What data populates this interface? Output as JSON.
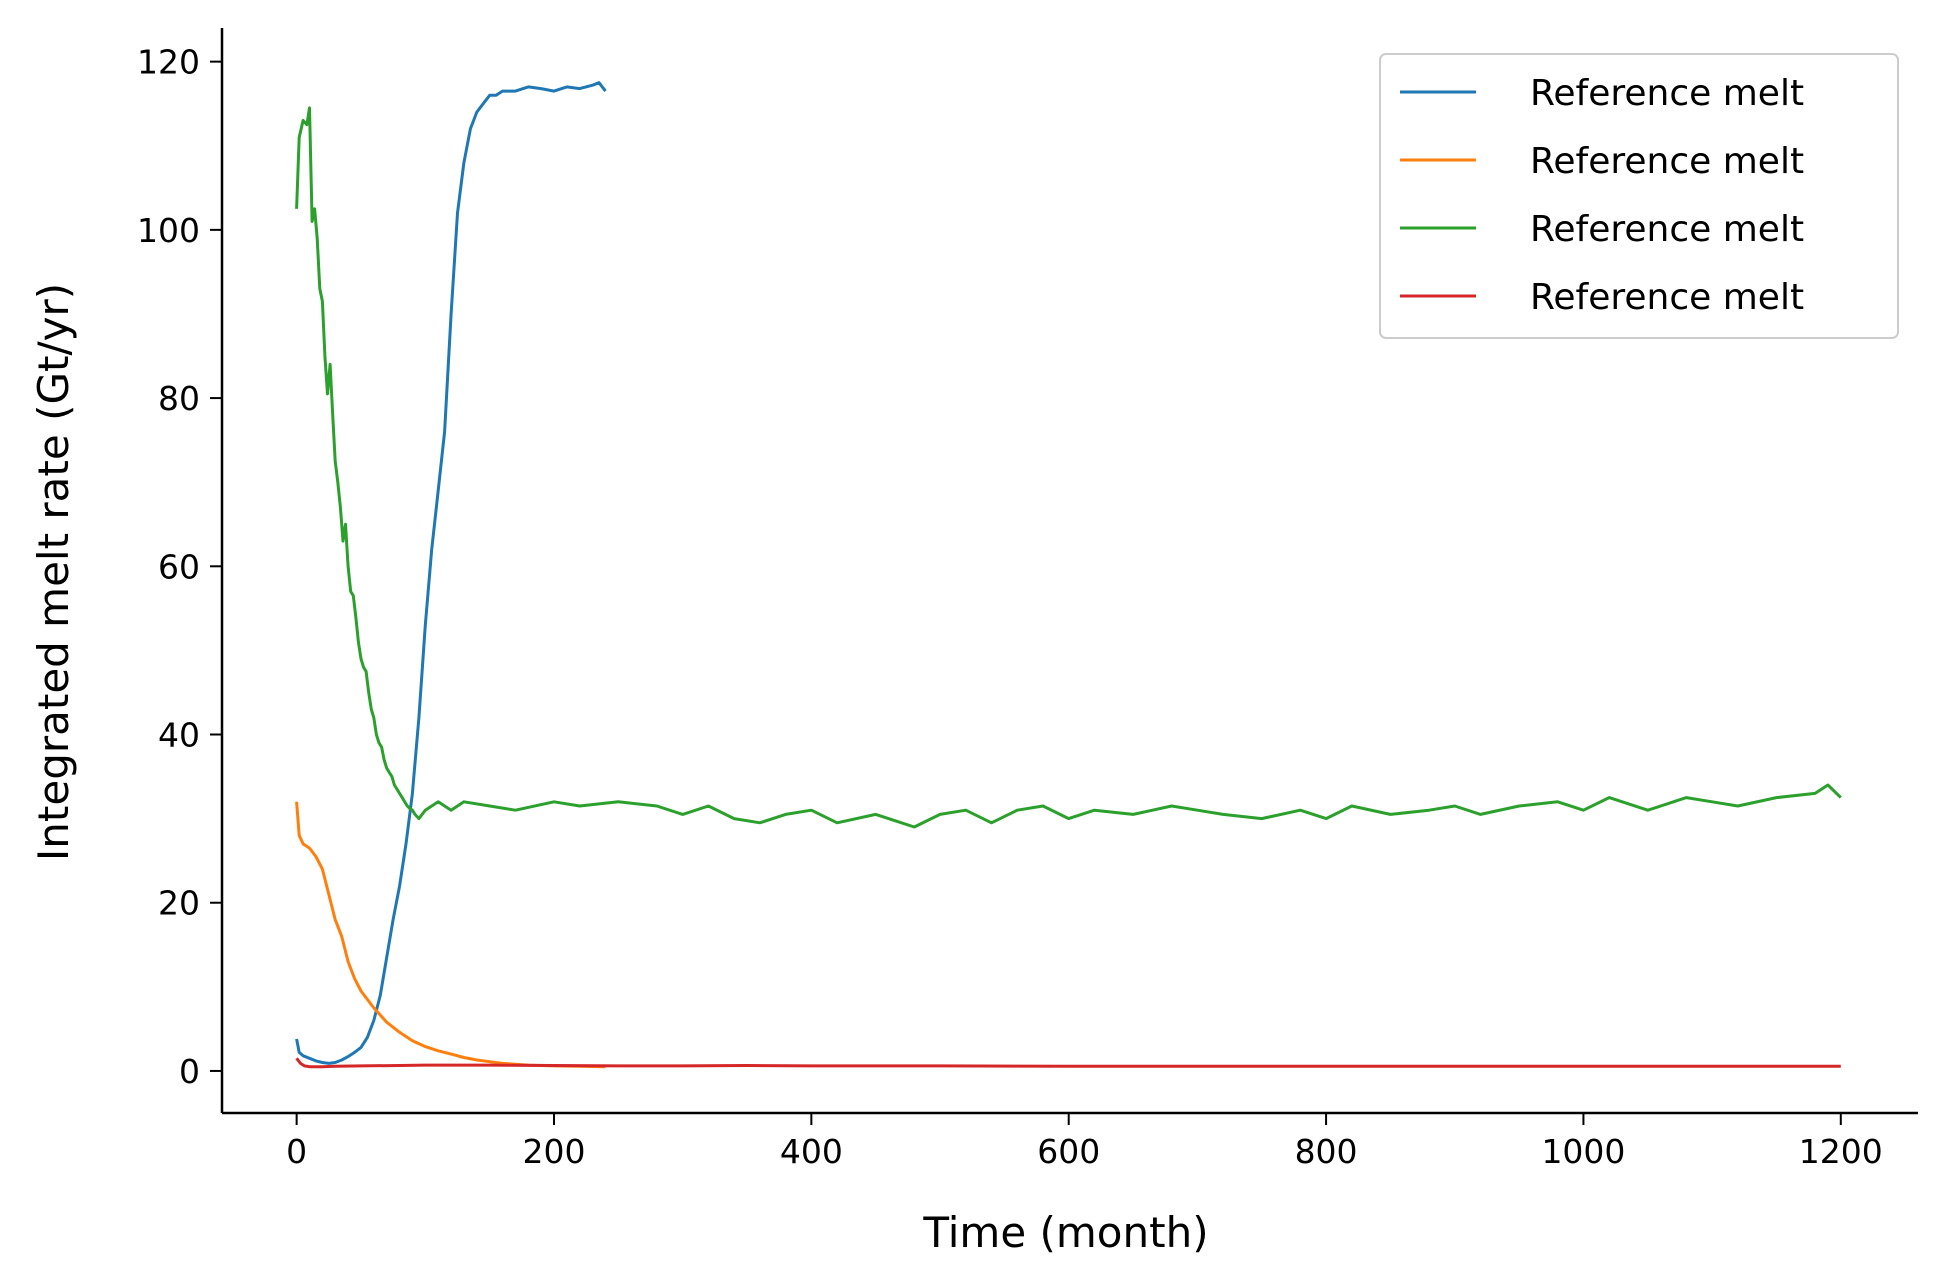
{
  "chart_data": {
    "type": "line",
    "title": "",
    "xlabel": "Time (month)",
    "ylabel": "Integrated melt rate (Gt/yr)",
    "xlim": [
      -58,
      1260
    ],
    "ylim": [
      -5,
      124
    ],
    "xticks": [
      0,
      200,
      400,
      600,
      800,
      1000,
      1200
    ],
    "yticks": [
      0,
      20,
      40,
      60,
      80,
      100,
      120
    ],
    "grid": false,
    "legend": "top-right",
    "series": [
      {
        "name": "Reference melt",
        "color": "#1f77b4",
        "x": [
          0,
          2,
          5,
          10,
          15,
          20,
          25,
          30,
          35,
          40,
          45,
          50,
          55,
          60,
          65,
          70,
          75,
          80,
          85,
          90,
          95,
          100,
          105,
          110,
          115,
          120,
          125,
          130,
          135,
          140,
          145,
          150,
          155,
          160,
          170,
          180,
          190,
          200,
          210,
          220,
          230,
          235,
          240
        ],
        "y": [
          3.8,
          2.2,
          1.8,
          1.5,
          1.2,
          1.0,
          0.9,
          1.0,
          1.3,
          1.7,
          2.2,
          2.8,
          4.0,
          6.0,
          9.0,
          13.5,
          18.0,
          22.0,
          27.0,
          33.0,
          42.0,
          53.0,
          62.0,
          69.0,
          76.0,
          90.0,
          102.0,
          108.0,
          112.0,
          114.0,
          115.0,
          116.0,
          116.0,
          116.5,
          116.5,
          117.0,
          116.8,
          116.5,
          117.0,
          116.8,
          117.2,
          117.5,
          116.5
        ]
      },
      {
        "name": "Reference melt",
        "color": "#ff7f0e",
        "x": [
          0,
          2,
          5,
          10,
          15,
          20,
          25,
          30,
          35,
          40,
          45,
          50,
          60,
          70,
          80,
          90,
          100,
          110,
          120,
          130,
          140,
          150,
          160,
          170,
          180,
          190,
          200,
          220,
          240
        ],
        "y": [
          32.0,
          28.0,
          27.0,
          26.5,
          25.5,
          24.0,
          21.0,
          18.0,
          16.0,
          13.0,
          11.0,
          9.5,
          7.5,
          5.8,
          4.6,
          3.6,
          2.9,
          2.4,
          2.0,
          1.6,
          1.3,
          1.1,
          0.9,
          0.8,
          0.7,
          0.65,
          0.6,
          0.55,
          0.5
        ]
      },
      {
        "name": "Reference melt",
        "color": "#2ca02c",
        "x": [
          0,
          2,
          5,
          8,
          10,
          12,
          14,
          16,
          18,
          20,
          22,
          24,
          26,
          28,
          30,
          32,
          34,
          36,
          38,
          40,
          42,
          44,
          46,
          48,
          50,
          52,
          54,
          56,
          58,
          60,
          62,
          64,
          66,
          68,
          70,
          72,
          74,
          76,
          78,
          80,
          82,
          84,
          86,
          88,
          90,
          92,
          95,
          100,
          110,
          120,
          130,
          150,
          170,
          200,
          220,
          250,
          280,
          300,
          320,
          340,
          360,
          380,
          400,
          420,
          450,
          480,
          500,
          520,
          540,
          560,
          580,
          600,
          620,
          650,
          680,
          700,
          720,
          750,
          780,
          800,
          820,
          850,
          880,
          900,
          920,
          950,
          980,
          1000,
          1020,
          1050,
          1080,
          1100,
          1120,
          1150,
          1180,
          1190,
          1200
        ],
        "y": [
          102.5,
          111.0,
          113.0,
          112.5,
          114.5,
          101.0,
          102.5,
          99.0,
          93.0,
          91.5,
          85.0,
          80.5,
          84.0,
          78.0,
          72.5,
          70.0,
          67.0,
          63.0,
          65.0,
          60.0,
          57.0,
          56.5,
          54.0,
          51.0,
          49.0,
          48.0,
          47.5,
          45.0,
          43.0,
          42.0,
          40.0,
          39.0,
          38.5,
          37.0,
          36.0,
          35.5,
          35.0,
          34.0,
          33.5,
          33.0,
          32.5,
          32.0,
          31.5,
          31.2,
          31.0,
          30.5,
          30.0,
          31.0,
          32.0,
          31.0,
          32.0,
          31.5,
          31.0,
          32.0,
          31.5,
          32.0,
          31.5,
          30.5,
          31.5,
          30.0,
          29.5,
          30.5,
          31.0,
          29.5,
          30.5,
          29.0,
          30.5,
          31.0,
          29.5,
          31.0,
          31.5,
          30.0,
          31.0,
          30.5,
          31.5,
          31.0,
          30.5,
          30.0,
          31.0,
          30.0,
          31.5,
          30.5,
          31.0,
          31.5,
          30.5,
          31.5,
          32.0,
          31.0,
          32.5,
          31.0,
          32.5,
          32.0,
          31.5,
          32.5,
          33.0,
          34.0,
          32.5
        ]
      },
      {
        "name": "Reference melt",
        "color": "#d62728",
        "x": [
          0,
          3,
          6,
          10,
          20,
          30,
          50,
          80,
          100,
          150,
          200,
          250,
          300,
          350,
          400,
          500,
          600,
          700,
          800,
          900,
          1000,
          1100,
          1200
        ],
        "y": [
          1.5,
          0.9,
          0.6,
          0.5,
          0.5,
          0.55,
          0.6,
          0.65,
          0.7,
          0.7,
          0.65,
          0.6,
          0.6,
          0.65,
          0.6,
          0.6,
          0.55,
          0.55,
          0.55,
          0.55,
          0.55,
          0.55,
          0.55
        ]
      }
    ]
  }
}
